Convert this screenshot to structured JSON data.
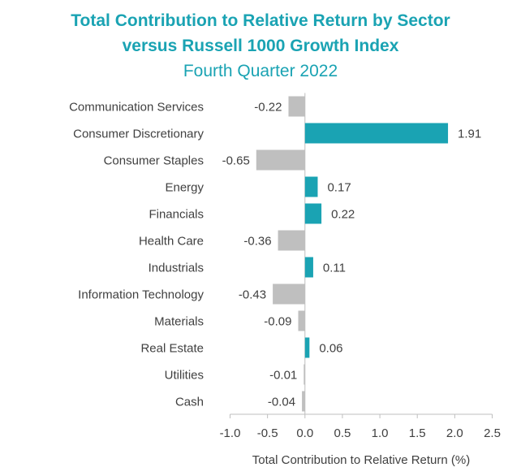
{
  "chart_data": {
    "type": "bar",
    "orientation": "horizontal",
    "title": "Total Contribution to Relative Return by Sector",
    "title_line2": "versus Russell 1000 Growth Index",
    "subtitle": "Fourth Quarter 2022",
    "xlabel": "Total Contribution to Relative Return (%)",
    "ylabel": "",
    "xlim": [
      -1.0,
      2.5
    ],
    "xticks": [
      -1.0,
      -0.5,
      0.0,
      0.5,
      1.0,
      1.5,
      2.0,
      2.5
    ],
    "xtick_labels": [
      "-1.0",
      "-0.5",
      "0.0",
      "0.5",
      "1.0",
      "1.5",
      "2.0",
      "2.5"
    ],
    "grid": false,
    "legend": "none",
    "categories": [
      "Communication Services",
      "Consumer Discretionary",
      "Consumer Staples",
      "Energy",
      "Financials",
      "Health Care",
      "Industrials",
      "Information Technology",
      "Materials",
      "Real Estate",
      "Utilities",
      "Cash"
    ],
    "values": [
      -0.22,
      1.91,
      -0.65,
      0.17,
      0.22,
      -0.36,
      0.11,
      -0.43,
      -0.09,
      0.06,
      -0.01,
      -0.04
    ],
    "value_labels": [
      "-0.22",
      "1.91",
      "-0.65",
      "0.17",
      "0.22",
      "-0.36",
      "0.11",
      "-0.43",
      "-0.09",
      "0.06",
      "-0.01",
      "-0.04"
    ],
    "colors": {
      "positive": "#1aa3b3",
      "negative": "#bfbfbf",
      "title": "#1aa3b3",
      "text": "#404040",
      "axis": "#bfbfbf"
    }
  }
}
